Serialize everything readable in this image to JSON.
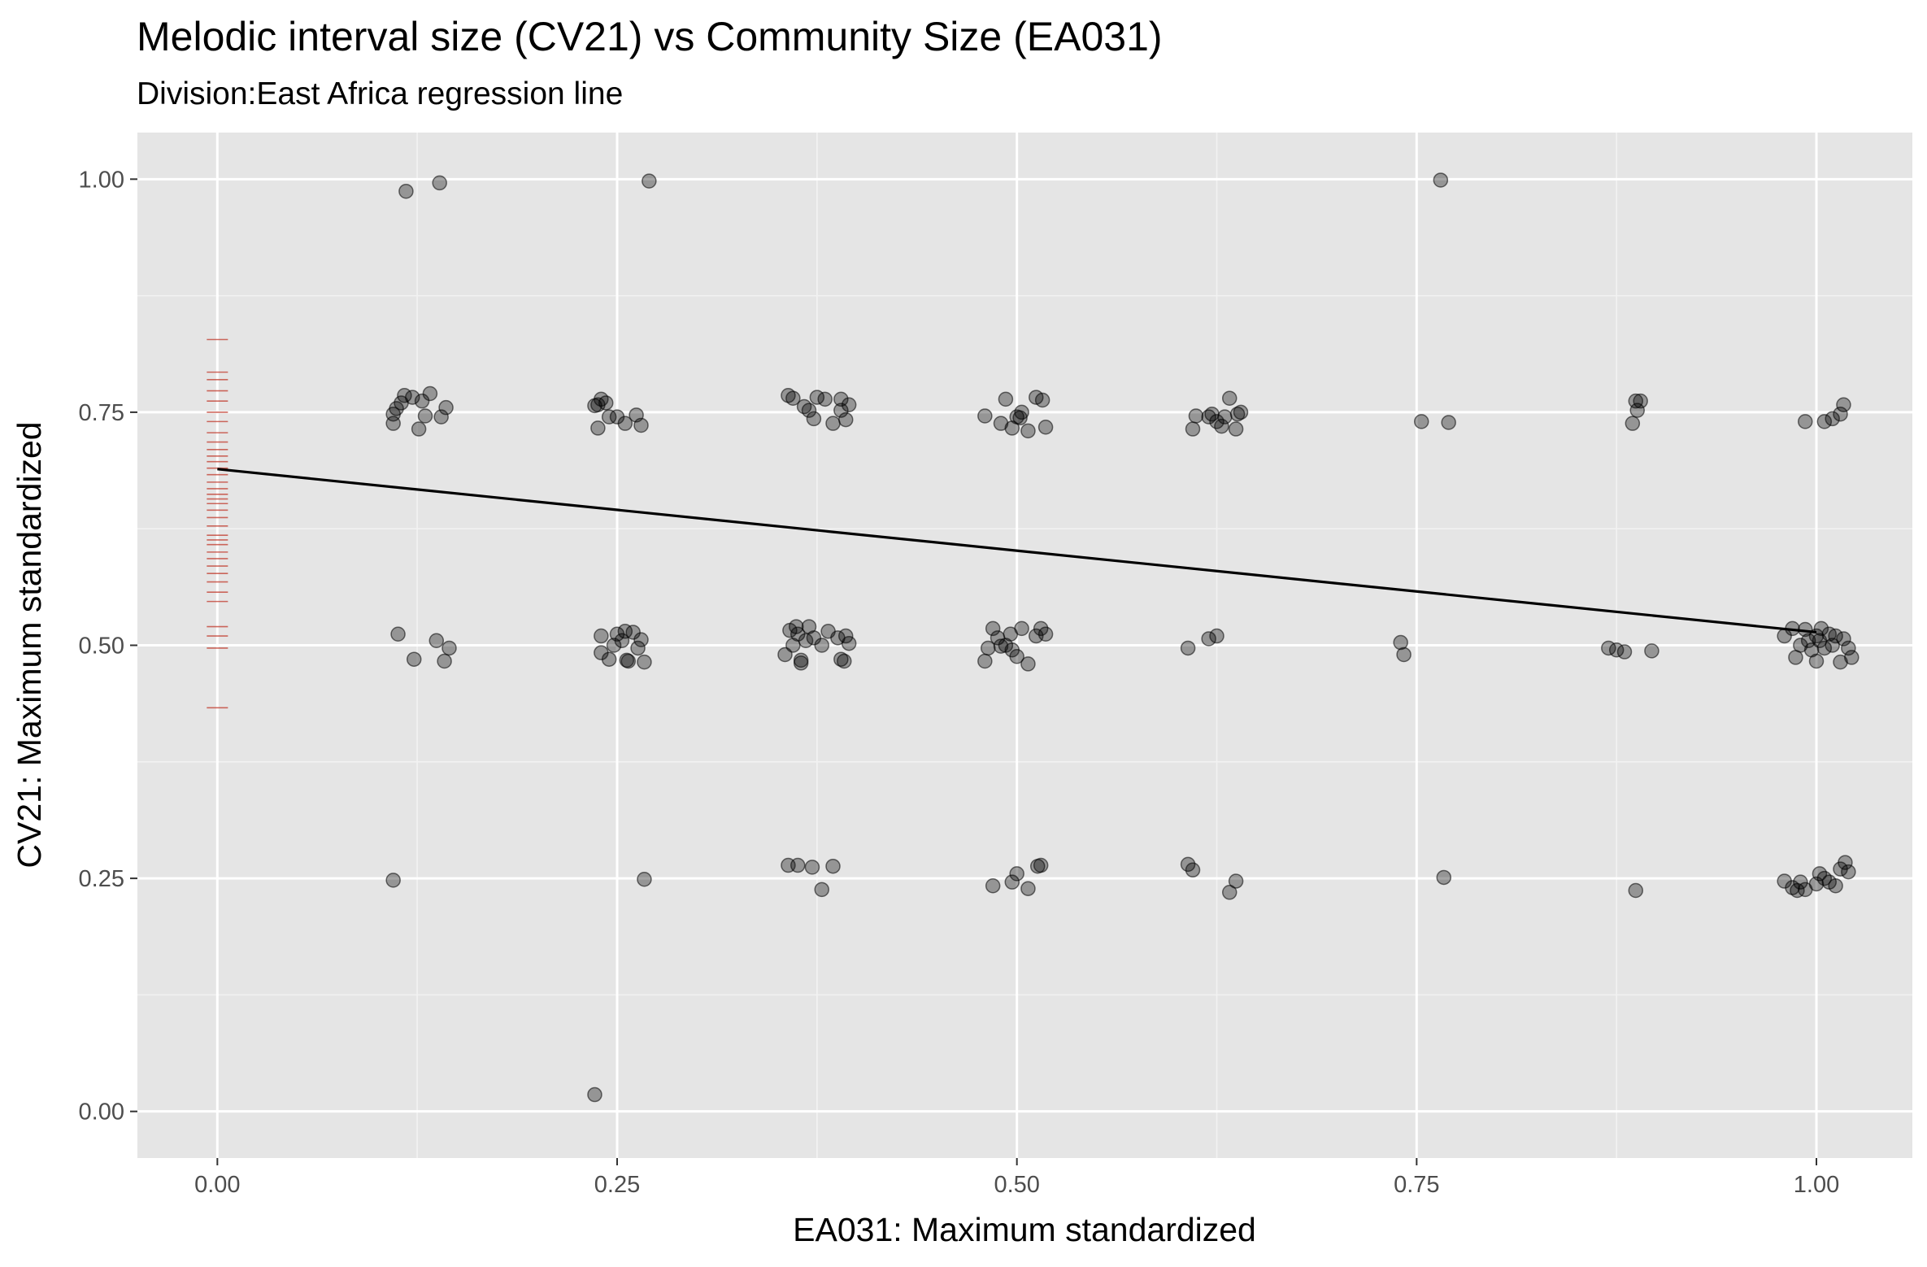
{
  "chart_data": {
    "type": "scatter",
    "title": "Melodic interval size (CV21) vs Community Size (EA031)",
    "subtitle": "Division:East Africa regression line",
    "xlabel": "EA031: Maximum standardized",
    "ylabel": "CV21: Maximum standardized",
    "xlim": [
      -0.05,
      1.06
    ],
    "ylim": [
      -0.05,
      1.05
    ],
    "x_ticks": [
      0.0,
      0.25,
      0.5,
      0.75,
      1.0
    ],
    "x_tick_labels": [
      "0.00",
      "0.25",
      "0.50",
      "0.75",
      "1.00"
    ],
    "y_ticks": [
      0.0,
      0.25,
      0.5,
      0.75,
      1.0
    ],
    "y_tick_labels": [
      "0.00",
      "0.25",
      "0.50",
      "0.75",
      "1.00"
    ],
    "grid": true,
    "background": "#e5e5e5",
    "point_color": "#000000",
    "point_alpha": 0.35,
    "rug_color": "#c0392b",
    "points": [
      [
        0.118,
        0.987
      ],
      [
        0.139,
        0.996
      ],
      [
        0.27,
        0.998
      ],
      [
        0.765,
        0.999
      ],
      [
        0.11,
        0.738
      ],
      [
        0.11,
        0.748
      ],
      [
        0.112,
        0.754
      ],
      [
        0.115,
        0.76
      ],
      [
        0.117,
        0.768
      ],
      [
        0.122,
        0.766
      ],
      [
        0.126,
        0.732
      ],
      [
        0.128,
        0.762
      ],
      [
        0.13,
        0.746
      ],
      [
        0.133,
        0.77
      ],
      [
        0.14,
        0.745
      ],
      [
        0.143,
        0.755
      ],
      [
        0.236,
        0.757
      ],
      [
        0.238,
        0.733
      ],
      [
        0.24,
        0.764
      ],
      [
        0.243,
        0.76
      ],
      [
        0.245,
        0.745
      ],
      [
        0.25,
        0.745
      ],
      [
        0.255,
        0.738
      ],
      [
        0.262,
        0.747
      ],
      [
        0.265,
        0.736
      ],
      [
        0.238,
        0.758
      ],
      [
        0.357,
        0.768
      ],
      [
        0.36,
        0.765
      ],
      [
        0.367,
        0.756
      ],
      [
        0.37,
        0.752
      ],
      [
        0.373,
        0.743
      ],
      [
        0.375,
        0.766
      ],
      [
        0.38,
        0.764
      ],
      [
        0.385,
        0.738
      ],
      [
        0.39,
        0.764
      ],
      [
        0.39,
        0.752
      ],
      [
        0.393,
        0.742
      ],
      [
        0.395,
        0.758
      ],
      [
        0.48,
        0.746
      ],
      [
        0.49,
        0.738
      ],
      [
        0.493,
        0.764
      ],
      [
        0.497,
        0.733
      ],
      [
        0.5,
        0.745
      ],
      [
        0.503,
        0.75
      ],
      [
        0.507,
        0.73
      ],
      [
        0.512,
        0.766
      ],
      [
        0.516,
        0.763
      ],
      [
        0.518,
        0.734
      ],
      [
        0.502,
        0.744
      ],
      [
        0.61,
        0.732
      ],
      [
        0.612,
        0.746
      ],
      [
        0.62,
        0.745
      ],
      [
        0.622,
        0.748
      ],
      [
        0.625,
        0.74
      ],
      [
        0.628,
        0.735
      ],
      [
        0.63,
        0.745
      ],
      [
        0.633,
        0.765
      ],
      [
        0.637,
        0.732
      ],
      [
        0.64,
        0.75
      ],
      [
        0.638,
        0.748
      ],
      [
        0.753,
        0.74
      ],
      [
        0.77,
        0.739
      ],
      [
        0.885,
        0.738
      ],
      [
        0.887,
        0.762
      ],
      [
        0.888,
        0.752
      ],
      [
        0.89,
        0.762
      ],
      [
        0.993,
        0.74
      ],
      [
        1.005,
        0.74
      ],
      [
        1.01,
        0.743
      ],
      [
        1.015,
        0.748
      ],
      [
        1.017,
        0.758
      ],
      [
        0.113,
        0.512
      ],
      [
        0.123,
        0.485
      ],
      [
        0.137,
        0.505
      ],
      [
        0.142,
        0.483
      ],
      [
        0.145,
        0.497
      ],
      [
        0.24,
        0.51
      ],
      [
        0.24,
        0.492
      ],
      [
        0.245,
        0.485
      ],
      [
        0.248,
        0.5
      ],
      [
        0.25,
        0.512
      ],
      [
        0.253,
        0.505
      ],
      [
        0.255,
        0.515
      ],
      [
        0.257,
        0.483
      ],
      [
        0.26,
        0.514
      ],
      [
        0.263,
        0.497
      ],
      [
        0.265,
        0.506
      ],
      [
        0.267,
        0.482
      ],
      [
        0.256,
        0.484
      ],
      [
        0.355,
        0.49
      ],
      [
        0.358,
        0.516
      ],
      [
        0.36,
        0.5
      ],
      [
        0.363,
        0.512
      ],
      [
        0.365,
        0.484
      ],
      [
        0.368,
        0.505
      ],
      [
        0.37,
        0.52
      ],
      [
        0.373,
        0.508
      ],
      [
        0.378,
        0.5
      ],
      [
        0.382,
        0.515
      ],
      [
        0.388,
        0.508
      ],
      [
        0.39,
        0.485
      ],
      [
        0.392,
        0.483
      ],
      [
        0.393,
        0.51
      ],
      [
        0.395,
        0.502
      ],
      [
        0.365,
        0.481
      ],
      [
        0.362,
        0.52
      ],
      [
        0.48,
        0.483
      ],
      [
        0.482,
        0.497
      ],
      [
        0.485,
        0.518
      ],
      [
        0.488,
        0.508
      ],
      [
        0.49,
        0.499
      ],
      [
        0.493,
        0.5
      ],
      [
        0.496,
        0.512
      ],
      [
        0.5,
        0.488
      ],
      [
        0.503,
        0.518
      ],
      [
        0.507,
        0.48
      ],
      [
        0.512,
        0.51
      ],
      [
        0.515,
        0.518
      ],
      [
        0.518,
        0.512
      ],
      [
        0.497,
        0.495
      ],
      [
        0.607,
        0.497
      ],
      [
        0.62,
        0.507
      ],
      [
        0.625,
        0.51
      ],
      [
        0.74,
        0.503
      ],
      [
        0.742,
        0.49
      ],
      [
        0.87,
        0.497
      ],
      [
        0.875,
        0.495
      ],
      [
        0.88,
        0.493
      ],
      [
        0.897,
        0.494
      ],
      [
        0.98,
        0.51
      ],
      [
        0.985,
        0.518
      ],
      [
        0.987,
        0.487
      ],
      [
        0.99,
        0.5
      ],
      [
        0.993,
        0.517
      ],
      [
        0.995,
        0.505
      ],
      [
        1.0,
        0.51
      ],
      [
        1.0,
        0.483
      ],
      [
        1.003,
        0.518
      ],
      [
        1.005,
        0.497
      ],
      [
        1.008,
        0.512
      ],
      [
        1.01,
        0.5
      ],
      [
        1.012,
        0.51
      ],
      [
        1.015,
        0.482
      ],
      [
        1.017,
        0.507
      ],
      [
        1.02,
        0.497
      ],
      [
        1.022,
        0.487
      ],
      [
        0.997,
        0.495
      ],
      [
        1.002,
        0.505
      ],
      [
        0.11,
        0.248
      ],
      [
        0.236,
        0.018
      ],
      [
        0.267,
        0.249
      ],
      [
        0.357,
        0.264
      ],
      [
        0.363,
        0.264
      ],
      [
        0.372,
        0.262
      ],
      [
        0.378,
        0.238
      ],
      [
        0.385,
        0.263
      ],
      [
        0.485,
        0.242
      ],
      [
        0.497,
        0.246
      ],
      [
        0.5,
        0.255
      ],
      [
        0.507,
        0.239
      ],
      [
        0.513,
        0.263
      ],
      [
        0.515,
        0.264
      ],
      [
        0.607,
        0.265
      ],
      [
        0.61,
        0.259
      ],
      [
        0.633,
        0.235
      ],
      [
        0.637,
        0.247
      ],
      [
        0.767,
        0.251
      ],
      [
        0.887,
        0.237
      ],
      [
        0.98,
        0.247
      ],
      [
        0.985,
        0.24
      ],
      [
        0.988,
        0.237
      ],
      [
        0.99,
        0.246
      ],
      [
        0.993,
        0.238
      ],
      [
        1.0,
        0.244
      ],
      [
        1.002,
        0.255
      ],
      [
        1.005,
        0.25
      ],
      [
        1.008,
        0.246
      ],
      [
        1.012,
        0.242
      ],
      [
        1.015,
        0.26
      ],
      [
        1.018,
        0.267
      ],
      [
        1.02,
        0.257
      ]
    ],
    "rug_y": [
      0.828,
      0.793,
      0.785,
      0.773,
      0.762,
      0.75,
      0.74,
      0.728,
      0.718,
      0.71,
      0.703,
      0.697,
      0.69,
      0.683,
      0.675,
      0.668,
      0.662,
      0.657,
      0.652,
      0.645,
      0.637,
      0.628,
      0.618,
      0.613,
      0.608,
      0.6,
      0.593,
      0.585,
      0.577,
      0.568,
      0.557,
      0.547,
      0.52,
      0.51,
      0.497,
      0.433
    ],
    "regression_line": {
      "x": [
        0.0,
        1.0
      ],
      "y": [
        0.689,
        0.514
      ]
    }
  }
}
